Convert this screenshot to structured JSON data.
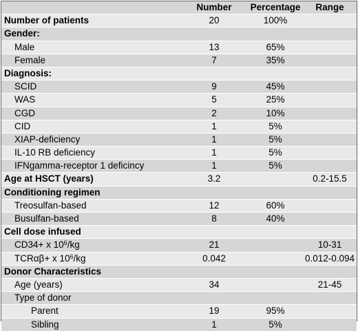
{
  "table": {
    "headers": {
      "label": "",
      "number": "Number",
      "percentage": "Percentage",
      "range": "Range"
    },
    "rows": [
      {
        "label": "Number of patients",
        "number": "20",
        "percentage": "100%",
        "range": ""
      },
      {
        "label": "Gender:",
        "number": "",
        "percentage": "",
        "range": ""
      },
      {
        "label": "Male",
        "number": "13",
        "percentage": "65%",
        "range": ""
      },
      {
        "label": "Female",
        "number": "7",
        "percentage": "35%",
        "range": ""
      },
      {
        "label": "Diagnosis:",
        "number": "",
        "percentage": "",
        "range": ""
      },
      {
        "label": "SCID",
        "number": "9",
        "percentage": "45%",
        "range": ""
      },
      {
        "label": "WAS",
        "number": "5",
        "percentage": "25%",
        "range": ""
      },
      {
        "label": "CGD",
        "number": "2",
        "percentage": "10%",
        "range": ""
      },
      {
        "label": "CID",
        "number": "1",
        "percentage": "5%",
        "range": ""
      },
      {
        "label": "XIAP-deficiency",
        "number": "1",
        "percentage": "5%",
        "range": ""
      },
      {
        "label": "IL-10 RB deficiency",
        "number": "1",
        "percentage": "5%",
        "range": ""
      },
      {
        "label": "IFNgamma-receptor 1 deficincy",
        "number": "1",
        "percentage": "5%",
        "range": ""
      },
      {
        "label": "Age at HSCT (years)",
        "number": "3.2",
        "percentage": "",
        "range": "0.2-15.5"
      },
      {
        "label": "Conditioning regimen",
        "number": "",
        "percentage": "",
        "range": ""
      },
      {
        "label": "Treosulfan-based",
        "number": "12",
        "percentage": "60%",
        "range": ""
      },
      {
        "label": "Busulfan-based",
        "number": "8",
        "percentage": "40%",
        "range": ""
      },
      {
        "label": "Cell dose infused",
        "number": "",
        "percentage": "",
        "range": ""
      },
      {
        "label_pre": "CD34+ x 10",
        "label_sup": "6",
        "label_post": "/kg",
        "number": "21",
        "percentage": "",
        "range": "10-31"
      },
      {
        "label_pre": "TCRαβ+ x 10",
        "label_sup": "6",
        "label_post": "/kg",
        "number": "0.042",
        "percentage": "",
        "range": "0.012-0.094"
      },
      {
        "label": "Donor Characteristics",
        "number": "",
        "percentage": "",
        "range": ""
      },
      {
        "label": "Age (years)",
        "number": "34",
        "percentage": "",
        "range": "21-45"
      },
      {
        "label": "Type of donor",
        "number": "",
        "percentage": "",
        "range": ""
      },
      {
        "label": "Parent",
        "number": "19",
        "percentage": "95%",
        "range": ""
      },
      {
        "label": "Sibling",
        "number": "1",
        "percentage": "5%",
        "range": ""
      }
    ]
  }
}
